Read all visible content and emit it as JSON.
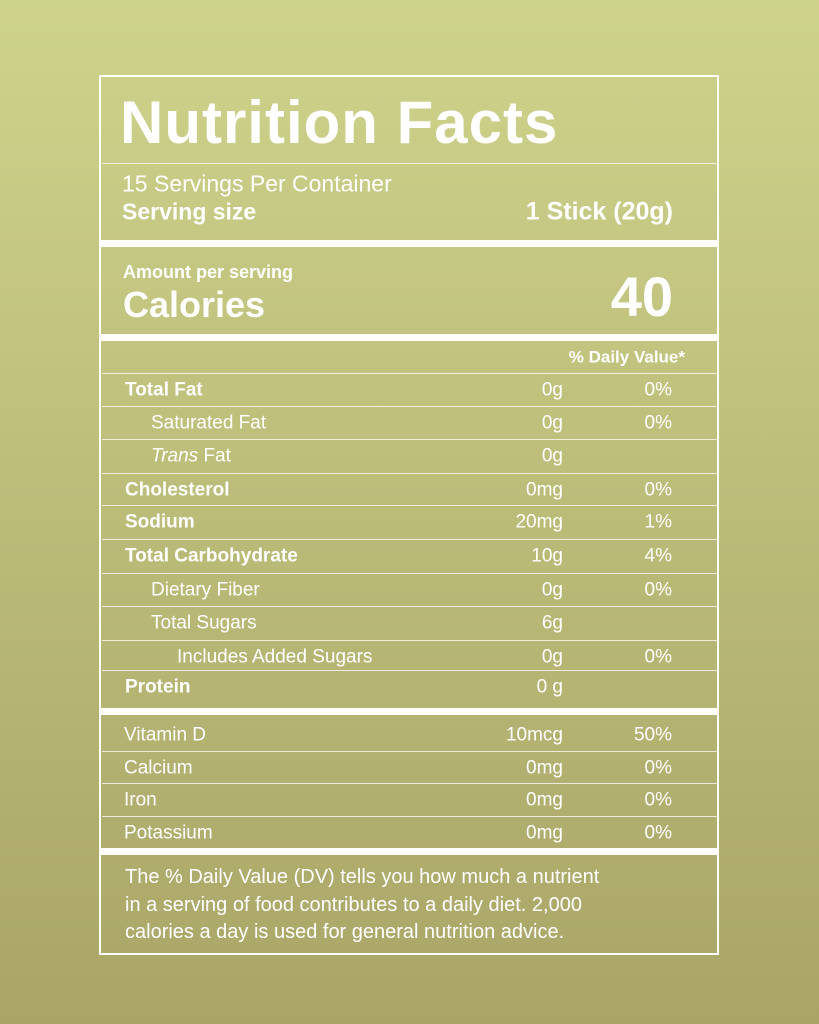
{
  "title": "Nutrition Facts",
  "servings": "15 Servings Per Container",
  "serving_size": {
    "label": "Serving size",
    "value": "1 Stick (20g)"
  },
  "amount_per_serving": "Amount per serving",
  "calories": {
    "label": "Calories",
    "value": "40"
  },
  "dv_header": "% Daily Value*",
  "nutrients": [
    {
      "name": "Total Fat",
      "amount": "0g",
      "dv": "0%"
    },
    {
      "name": "Saturated Fat",
      "amount": "0g",
      "dv": "0%"
    },
    {
      "italic": "Trans",
      "name": "Fat",
      "amount": "0g"
    },
    {
      "name": "Cholesterol",
      "amount": "0mg",
      "dv": "0%"
    },
    {
      "name": "Sodium",
      "amount": "20mg",
      "dv": "1%"
    },
    {
      "name": "Total Carbohydrate",
      "amount": "10g",
      "dv": "4%"
    },
    {
      "name": "Dietary Fiber",
      "amount": "0g",
      "dv": "0%"
    },
    {
      "name": "Total Sugars",
      "amount": "6g"
    },
    {
      "name": "Includes Added Sugars",
      "amount": "0g",
      "dv": "0%"
    },
    {
      "name": "Protein",
      "amount": "0 g"
    }
  ],
  "vitamins": [
    {
      "name": "Vitamin D",
      "amount": "10mcg",
      "dv": "50%"
    },
    {
      "name": "Calcium",
      "amount": "0mg",
      "dv": "0%"
    },
    {
      "name": "Iron",
      "amount": "0mg",
      "dv": "0%"
    },
    {
      "name": "Potassium",
      "amount": "0mg",
      "dv": "0%"
    }
  ],
  "footnote": [
    "The % Daily Value (DV) tells you how much a nutrient",
    "in a serving of food contributes to a daily diet. 2,000",
    "calories a day is used for general nutrition advice."
  ]
}
